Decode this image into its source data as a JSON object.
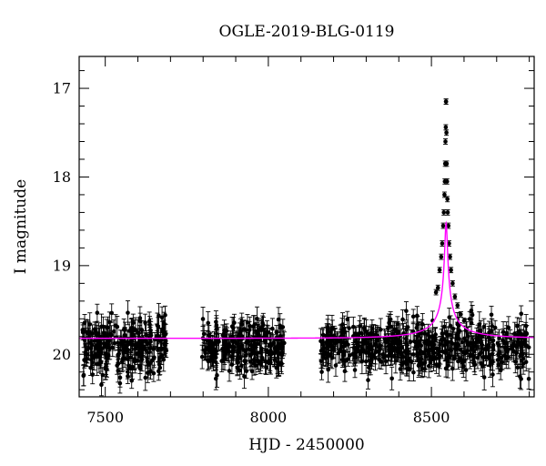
{
  "chart_data": {
    "type": "scatter",
    "title": "OGLE-2019-BLG-0119",
    "xlabel": "HJD - 2450000",
    "ylabel": "I magnitude",
    "xlim": [
      7420,
      8815
    ],
    "ylim": [
      20.48,
      16.64
    ],
    "y_inverted": true,
    "grid": false,
    "x_major_ticks": [
      7500,
      8000,
      8500
    ],
    "x_minor_step": 100,
    "y_major_ticks": [
      17,
      18,
      19,
      20
    ],
    "y_minor_step": 0.2,
    "x_tick_labels": [
      "7500",
      "8000",
      "8500"
    ],
    "y_tick_labels": [
      "17",
      "18",
      "19",
      "20"
    ],
    "colors": {
      "data": "#000000",
      "model": "#ff00ff",
      "axes": "#000000"
    },
    "series": [
      {
        "kind": "observations",
        "marker": "filled-circle-with-errorbars",
        "seasons": [
          {
            "x_start": 7430,
            "x_end": 7690,
            "baseline_mag": 19.92,
            "scatter_mag": 0.16,
            "error_mag": 0.11,
            "n_points": 240
          },
          {
            "x_start": 7795,
            "x_end": 8050,
            "baseline_mag": 19.9,
            "scatter_mag": 0.14,
            "error_mag": 0.11,
            "n_points": 240
          },
          {
            "x_start": 8160,
            "x_end": 8435,
            "baseline_mag": 19.9,
            "scatter_mag": 0.14,
            "error_mag": 0.11,
            "n_points": 240
          },
          {
            "x_start": 8435,
            "x_end": 8800,
            "baseline_mag": 19.92,
            "scatter_mag": 0.15,
            "error_mag": 0.11,
            "n_points": 280
          }
        ],
        "peak_points": [
          [
            8514,
            19.3
          ],
          [
            8520,
            19.25
          ],
          [
            8525,
            19.05
          ],
          [
            8530,
            18.9
          ],
          [
            8533,
            18.75
          ],
          [
            8536,
            18.55
          ],
          [
            8538,
            18.4
          ],
          [
            8540,
            18.2
          ],
          [
            8541,
            18.05
          ],
          [
            8542,
            17.85
          ],
          [
            8543,
            17.6
          ],
          [
            8544,
            17.44
          ],
          [
            8544.5,
            17.15
          ],
          [
            8545,
            17.15
          ],
          [
            8546,
            17.5
          ],
          [
            8547,
            17.85
          ],
          [
            8548,
            18.05
          ],
          [
            8549,
            18.25
          ],
          [
            8550,
            18.4
          ],
          [
            8552,
            18.55
          ],
          [
            8554,
            18.75
          ],
          [
            8557,
            18.9
          ],
          [
            8560,
            19.05
          ],
          [
            8565,
            19.2
          ],
          [
            8572,
            19.35
          ],
          [
            8580,
            19.45
          ],
          [
            8590,
            19.55
          ],
          [
            8600,
            19.62
          ]
        ]
      },
      {
        "kind": "model",
        "line": "solid",
        "t0": 8545,
        "u0": 0.017,
        "tE": 220,
        "baseline_mag": 19.82,
        "blend_fraction": 0.04
      }
    ]
  }
}
